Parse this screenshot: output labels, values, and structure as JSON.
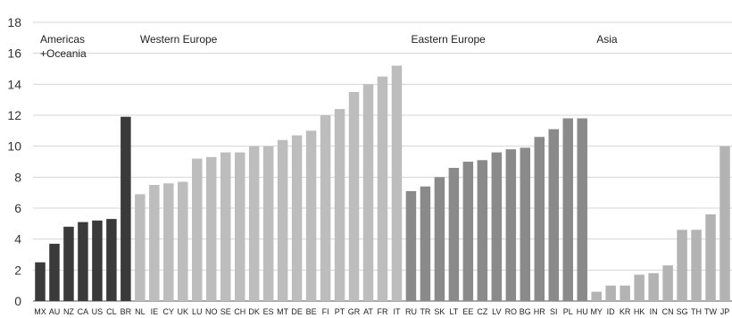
{
  "chart_data": {
    "type": "bar",
    "title": "",
    "xlabel": "",
    "ylabel": "",
    "ylim": [
      0,
      18
    ],
    "yticks": [
      0,
      2,
      4,
      6,
      8,
      10,
      12,
      14,
      16,
      18
    ],
    "grid": true,
    "groups": [
      {
        "label_lines": [
          "Americas",
          "+Oceania"
        ],
        "categories": [
          "MX",
          "AU",
          "NZ",
          "CA",
          "US",
          "CL"
        ],
        "values": [
          2.5,
          3.7,
          4.8,
          5.1,
          5.2,
          5.3
        ],
        "color": "#3a3a3a"
      },
      {
        "label_lines": [],
        "categories": [
          "BR"
        ],
        "values": [
          11.9
        ],
        "color": "#3a3a3a"
      },
      {
        "label_lines": [
          "Western Europe"
        ],
        "categories": [
          "NL",
          "IE",
          "CY",
          "UK",
          "LU",
          "NO",
          "SE",
          "CH",
          "DK",
          "ES",
          "MT",
          "DE",
          "BE",
          "FI",
          "PT",
          "GR",
          "AT",
          "FR",
          "IT"
        ],
        "values": [
          6.9,
          7.5,
          7.6,
          7.7,
          9.2,
          9.3,
          9.6,
          9.6,
          10.0,
          10.0,
          10.4,
          10.7,
          11.0,
          12.0,
          12.4,
          13.5,
          14.0,
          14.5,
          15.2
        ],
        "color": "#bdbdbd"
      },
      {
        "label_lines": [
          "Eastern Europe"
        ],
        "categories": [
          "RU",
          "TR",
          "SK",
          "LT",
          "EE",
          "CZ",
          "LV",
          "RO",
          "BG",
          "HR",
          "SI",
          "PL",
          "HU"
        ],
        "values": [
          7.1,
          7.4,
          8.0,
          8.6,
          9.0,
          9.1,
          9.6,
          9.8,
          9.9,
          10.6,
          11.1,
          11.8,
          11.8
        ],
        "color": "#8a8a8a"
      },
      {
        "label_lines": [
          "Asia"
        ],
        "categories": [
          "MY",
          "ID",
          "KR",
          "HK",
          "IN",
          "CN",
          "SG",
          "TH",
          "TW",
          "JP"
        ],
        "values": [
          0.6,
          1.0,
          1.0,
          1.7,
          1.8,
          2.3,
          4.6,
          4.6,
          5.6,
          10.0
        ],
        "color": "#b3b3b3"
      }
    ]
  }
}
